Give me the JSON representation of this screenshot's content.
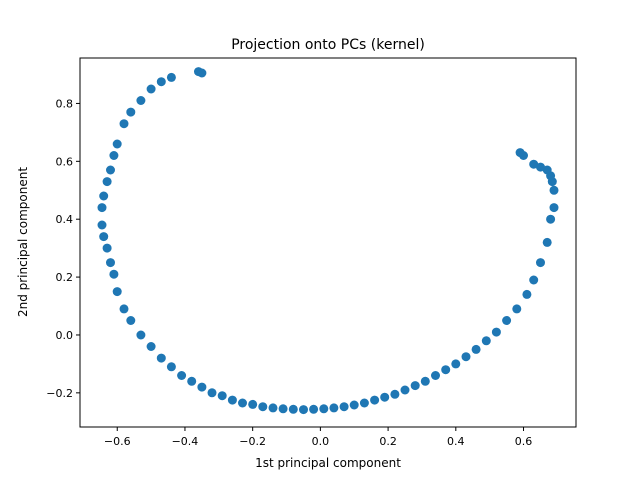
{
  "chart_data": {
    "type": "scatter",
    "title": "Projection onto PCs (kernel)",
    "xlabel": "1st principal component",
    "ylabel": "2nd principal component",
    "xlim": [
      -0.71,
      0.755
    ],
    "ylim": [
      -0.318,
      0.957
    ],
    "xticks": [
      -0.6,
      -0.4,
      -0.2,
      0.0,
      0.2,
      0.4,
      0.6
    ],
    "xtick_labels": [
      "−0.6",
      "−0.4",
      "−0.2",
      "0.0",
      "0.2",
      "0.4",
      "0.6"
    ],
    "yticks": [
      -0.2,
      0.0,
      0.2,
      0.4,
      0.6,
      0.8
    ],
    "ytick_labels": [
      "−0.2",
      "0.0",
      "0.2",
      "0.4",
      "0.6",
      "0.8"
    ],
    "grid": false,
    "legend": "none",
    "color": "#1f77b4",
    "series": [
      {
        "x": [
          -0.36,
          -0.35,
          -0.44,
          -0.47,
          -0.5,
          -0.53,
          -0.56,
          -0.58,
          -0.6,
          -0.61,
          -0.62,
          -0.63,
          -0.64,
          -0.645,
          -0.645,
          -0.64,
          -0.63,
          -0.62,
          -0.61,
          -0.6,
          -0.58,
          -0.56,
          -0.53,
          -0.5,
          -0.47,
          -0.44,
          -0.41,
          -0.38,
          -0.35,
          -0.32,
          -0.29,
          -0.26,
          -0.23,
          -0.2,
          -0.17,
          -0.14,
          -0.11,
          -0.08,
          -0.05,
          -0.02,
          0.01,
          0.04,
          0.07,
          0.1,
          0.13,
          0.16,
          0.19,
          0.22,
          0.25,
          0.28,
          0.31,
          0.34,
          0.37,
          0.4,
          0.43,
          0.46,
          0.49,
          0.52,
          0.55,
          0.58,
          0.61,
          0.63,
          0.65,
          0.67,
          0.68,
          0.69,
          0.69,
          0.685,
          0.68,
          0.67,
          0.65,
          0.63,
          0.6,
          0.59
        ],
        "y": [
          0.91,
          0.905,
          0.89,
          0.875,
          0.85,
          0.81,
          0.77,
          0.73,
          0.66,
          0.62,
          0.57,
          0.53,
          0.48,
          0.44,
          0.38,
          0.34,
          0.3,
          0.25,
          0.21,
          0.15,
          0.09,
          0.05,
          0.0,
          -0.04,
          -0.08,
          -0.11,
          -0.14,
          -0.16,
          -0.18,
          -0.2,
          -0.21,
          -0.225,
          -0.235,
          -0.24,
          -0.248,
          -0.252,
          -0.255,
          -0.257,
          -0.258,
          -0.257,
          -0.255,
          -0.252,
          -0.248,
          -0.242,
          -0.235,
          -0.225,
          -0.215,
          -0.205,
          -0.19,
          -0.175,
          -0.16,
          -0.14,
          -0.12,
          -0.1,
          -0.075,
          -0.05,
          -0.02,
          0.01,
          0.05,
          0.09,
          0.14,
          0.19,
          0.25,
          0.32,
          0.4,
          0.44,
          0.5,
          0.53,
          0.55,
          0.57,
          0.58,
          0.59,
          0.62,
          0.63
        ]
      }
    ]
  }
}
